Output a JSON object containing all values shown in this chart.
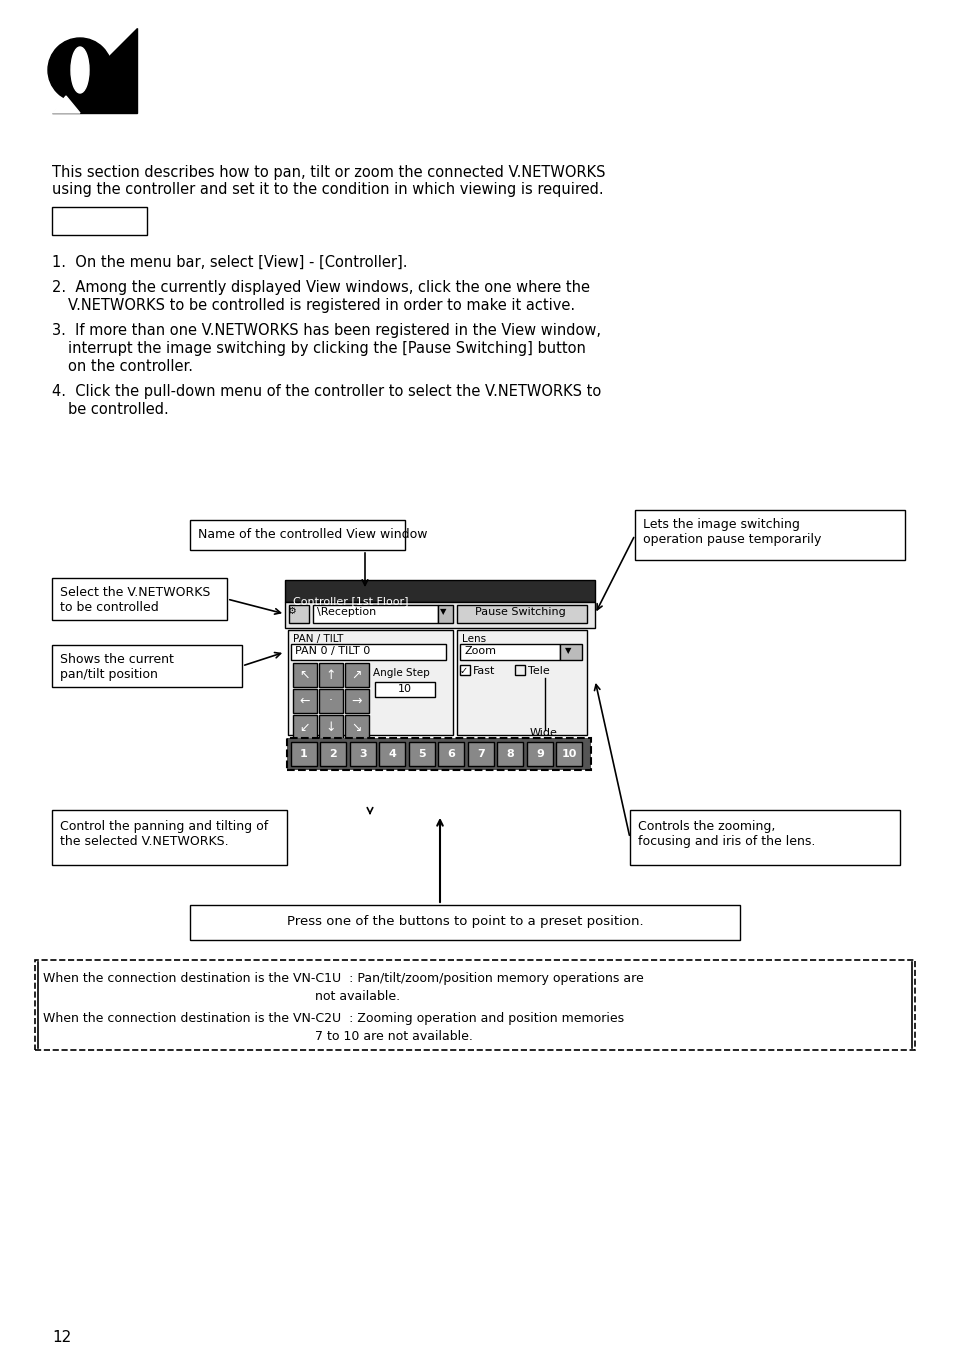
{
  "page_number": "12",
  "bg_color": "#ffffff",
  "text_color": "#000000",
  "intro_text": "This section describes how to pan, tilt or zoom the connected V.NETWORKS\nusing the controller and set it to the condition in which viewing is required.",
  "steps": [
    "On the menu bar, select [View] - [Controller].",
    "Among the currently displayed View windows, click the one where the\n   V.NETWORKS to be controlled is registered in order to make it active.",
    "If more than one V.NETWORKS has been registered in the View window,\n   interrupt the image switching by clicking the [Pause Switching] button\n   on the controller.",
    "Click the pull-down menu of the controller to select the V.NETWORKS to\n   be controlled."
  ],
  "labels": {
    "name_of_view": "Name of the controlled View window",
    "pause_switching": "Lets the image switching\noperation pause temporarily",
    "select_vnetworks": "Select the V.NETWORKS\nto be controlled",
    "shows_current": "Shows the current\npan/tilt position",
    "control_panning": "Control the panning and tilting of\nthe selected V.NETWORKS.",
    "controls_zooming": "Controls the zooming,\nfocusing and iris of the lens.",
    "preset_button": "Press one of the buttons to point to a preset position."
  },
  "note_lines": [
    "When the connection destination is the VN-C1U  : Pan/tilt/zoom/position memory operations are",
    "                                                                    not available.",
    "When the connection destination is the VN-C2U  : Zooming operation and position memories",
    "                                                                    7 to 10 are not available."
  ]
}
